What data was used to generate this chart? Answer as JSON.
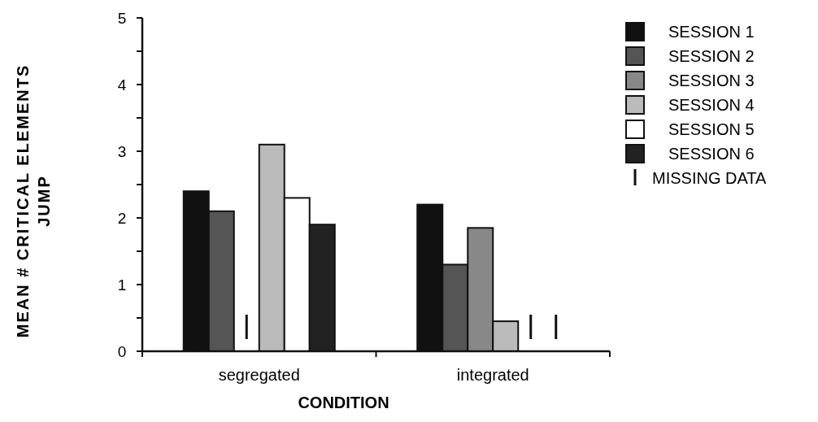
{
  "chart_data": {
    "type": "bar",
    "xlabel": "CONDITION",
    "ylabel": "MEAN # CRITICAL ELEMENTS\nJUMP",
    "categories": [
      "segregated",
      "integrated"
    ],
    "series": [
      {
        "name": "SESSION 1",
        "color": "#111111",
        "values": [
          2.4,
          2.2
        ]
      },
      {
        "name": "SESSION 2",
        "color": "#555555",
        "values": [
          2.1,
          1.3
        ]
      },
      {
        "name": "SESSION 3",
        "color": "#888888",
        "values": [
          null,
          1.85
        ]
      },
      {
        "name": "SESSION 4",
        "color": "#bbbbbb",
        "values": [
          3.1,
          0.45
        ]
      },
      {
        "name": "SESSION 5",
        "color": "#ffffff",
        "values": [
          2.3,
          null
        ]
      },
      {
        "name": "SESSION 6",
        "color": "#222222",
        "values": [
          1.9,
          null
        ]
      }
    ],
    "ylim": [
      0,
      5
    ],
    "yticks": [
      0,
      {
        "value": 0.5,
        "label": null
      },
      1,
      {
        "value": 1.5,
        "label": null
      },
      2,
      {
        "value": 2.5,
        "label": null
      },
      3,
      {
        "value": 3.5,
        "label": null
      },
      4,
      {
        "value": 4.5,
        "label": null
      },
      5
    ],
    "legend": "right",
    "annotations": [
      "MISSING DATA"
    ]
  }
}
